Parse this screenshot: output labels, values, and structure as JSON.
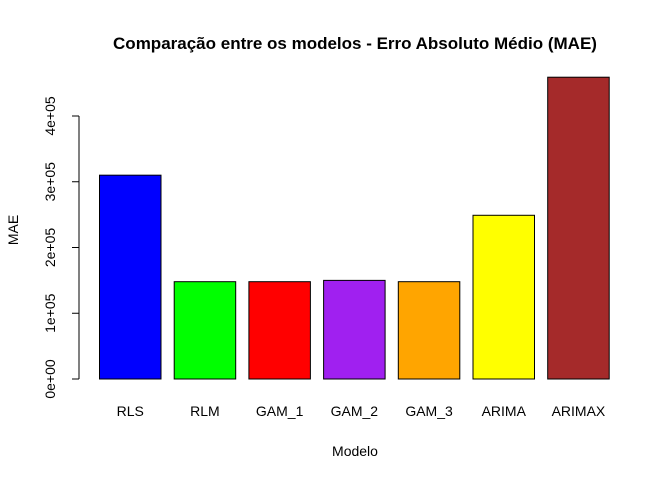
{
  "chart_data": {
    "type": "bar",
    "title": "Comparação entre os modelos - Erro Absoluto Médio (MAE)",
    "xlabel": "Modelo",
    "ylabel": "MAE",
    "categories": [
      "RLS",
      "RLM",
      "GAM_1",
      "GAM_2",
      "GAM_3",
      "ARIMA",
      "ARIMAX"
    ],
    "values": [
      310000,
      148000,
      148000,
      150000,
      148000,
      249000,
      459000
    ],
    "colors": [
      "#0000ff",
      "#00ff00",
      "#ff0000",
      "#a020f0",
      "#ffa500",
      "#ffff00",
      "#a52a2a"
    ],
    "yticks": [
      0,
      100000,
      200000,
      300000,
      400000
    ],
    "ytick_labels": [
      "0e+00",
      "1e+05",
      "2e+05",
      "3e+05",
      "4e+05"
    ],
    "ylim": [
      0,
      459000
    ],
    "grid": false,
    "legend": "none"
  }
}
